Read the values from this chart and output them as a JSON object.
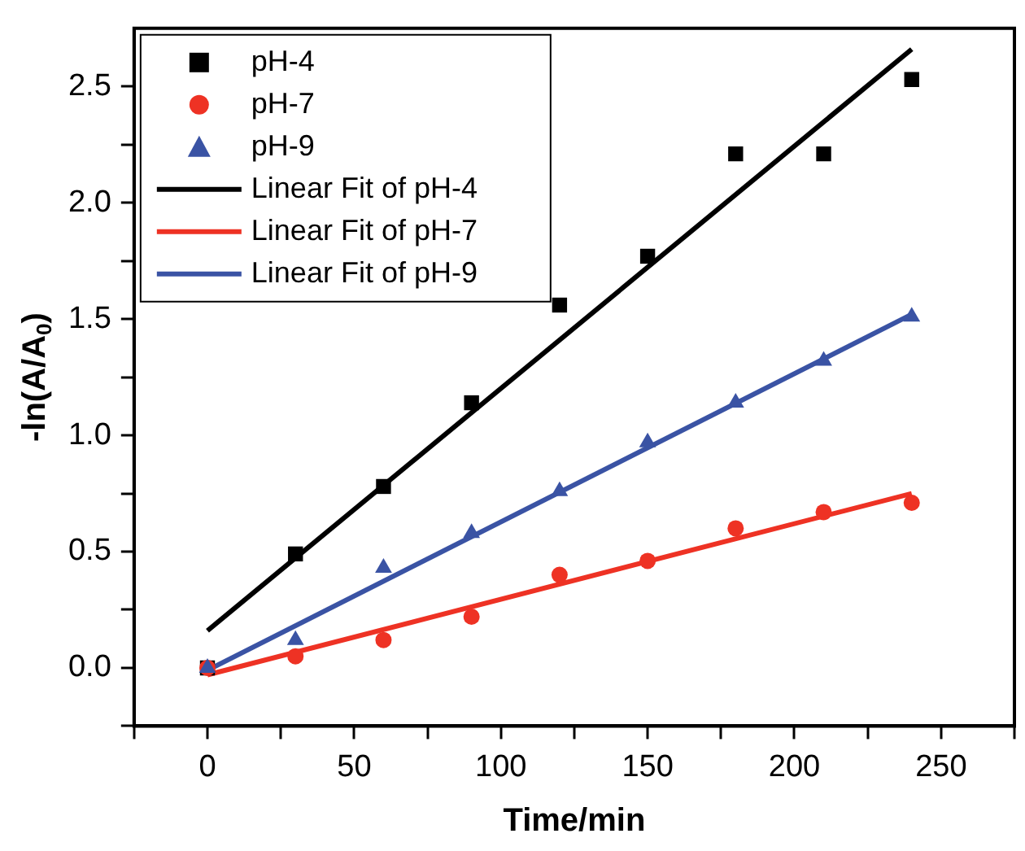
{
  "chart_data": {
    "type": "scatter",
    "xlabel": "Time/min",
    "ylabel": "-ln(A/A$_{0}$)",
    "xlim": [
      -25,
      275
    ],
    "ylim": [
      -0.25,
      2.75
    ],
    "xticks": [
      {
        "value": -25,
        "label": null
      },
      0,
      {
        "value": 25,
        "label": null
      },
      50,
      {
        "value": 75,
        "label": null
      },
      100,
      {
        "value": 125,
        "label": null
      },
      150,
      {
        "value": 175,
        "label": null
      },
      200,
      {
        "value": 225,
        "label": null
      },
      250,
      {
        "value": 275,
        "label": null
      }
    ],
    "yticks": [
      {
        "value": -0.25,
        "label": null
      },
      {
        "value": 0,
        "label": "0.0"
      },
      {
        "value": 0.25,
        "label": null
      },
      {
        "value": 0.5,
        "label": "0.5"
      },
      {
        "value": 0.75,
        "label": null
      },
      {
        "value": 1,
        "label": "1.0"
      },
      {
        "value": 1.25,
        "label": null
      },
      {
        "value": 1.5,
        "label": "1.5"
      },
      {
        "value": 1.75,
        "label": null
      },
      {
        "value": 2,
        "label": "2.0"
      },
      {
        "value": 2.25,
        "label": null
      },
      {
        "value": 2.5,
        "label": "2.5"
      }
    ],
    "grid": false,
    "legend": "top left",
    "series": [
      {
        "name": "pH-4",
        "type": "scatter",
        "marker": "square",
        "color": "#000000",
        "x": [
          0,
          30,
          60,
          90,
          120,
          150,
          180,
          210,
          240
        ],
        "values": [
          0,
          0.49,
          0.78,
          1.14,
          1.56,
          1.77,
          2.21,
          2.21,
          2.53
        ]
      },
      {
        "name": "pH-7",
        "type": "scatter",
        "marker": "circle",
        "color": "#ee3224",
        "x": [
          0,
          30,
          60,
          90,
          120,
          150,
          180,
          210,
          240
        ],
        "values": [
          0,
          0.05,
          0.12,
          0.22,
          0.4,
          0.46,
          0.6,
          0.67,
          0.71
        ]
      },
      {
        "name": "pH-9",
        "type": "scatter",
        "marker": "triangle",
        "color": "#3a53a4",
        "x": [
          0,
          30,
          60,
          90,
          120,
          150,
          180,
          210,
          240
        ],
        "values": [
          0,
          0.12,
          0.43,
          0.58,
          0.76,
          0.97,
          1.14,
          1.32,
          1.51
        ]
      },
      {
        "name": "Linear Fit of pH-4",
        "type": "line",
        "marker": "none",
        "line_style": "solid",
        "color": "#000000",
        "x": [
          0,
          240
        ],
        "values": [
          0.16,
          2.66
        ]
      },
      {
        "name": "Linear Fit of pH-7",
        "type": "line",
        "marker": "none",
        "line_style": "solid",
        "color": "#ee3224",
        "x": [
          0,
          240
        ],
        "values": [
          -0.03,
          0.75
        ]
      },
      {
        "name": "Linear Fit of pH-9",
        "type": "line",
        "marker": "none",
        "line_style": "solid",
        "color": "#3a53a4",
        "x": [
          0,
          240
        ],
        "values": [
          -0.01,
          1.52
        ]
      }
    ]
  }
}
